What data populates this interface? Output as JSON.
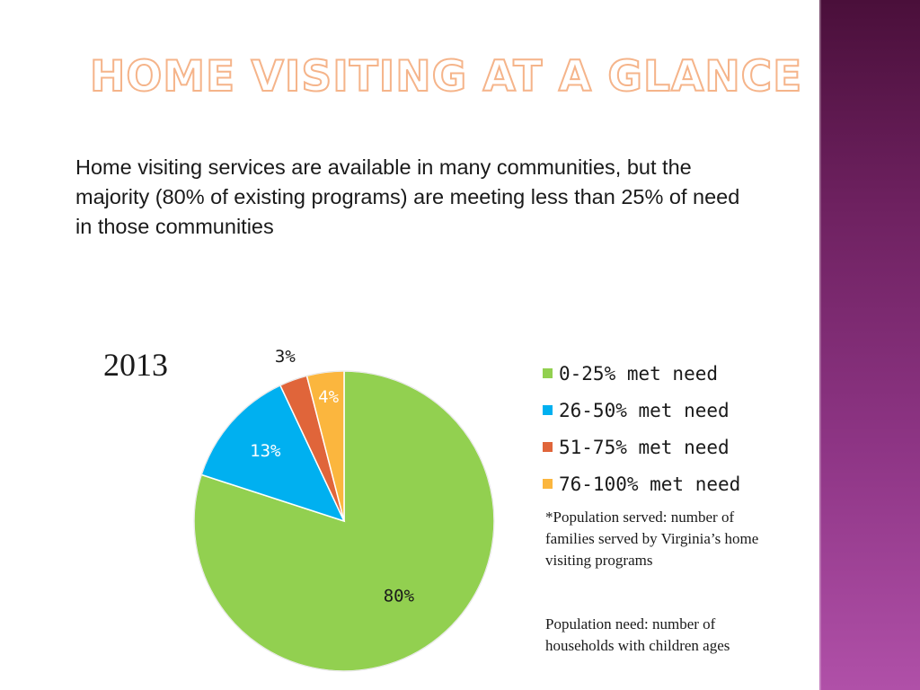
{
  "slide": {
    "title": "Home Visiting at a Glance",
    "intro": "Home visiting services are available in many communities, but the majority (80% of existing programs) are meeting less than 25% of need in those communities",
    "year": "2013",
    "note_served": "*Population served: number of families served by Virginia’s home visiting programs",
    "note_need": "Population need: number of households with children ages"
  },
  "colors": {
    "accent_sidebar_top": "#4a0f3a",
    "accent_sidebar_bottom": "#b050a8",
    "title_outline": "#f5b48a"
  },
  "chart_data": {
    "type": "pie",
    "title": "",
    "categories": [
      "0-25% met need",
      "26-50% met need",
      "51-75% met need",
      "76-100% met need"
    ],
    "values": [
      80,
      13,
      3,
      4
    ],
    "labels": [
      "80%",
      "13%",
      "3%",
      "4%"
    ],
    "colors": [
      "#92d050",
      "#00b0f0",
      "#e0653a",
      "#fbb63e"
    ],
    "legend": [
      "0-25% met need",
      "26-50% met need",
      "51-75% met need",
      "76-100% met need"
    ],
    "legend_position": "right"
  }
}
